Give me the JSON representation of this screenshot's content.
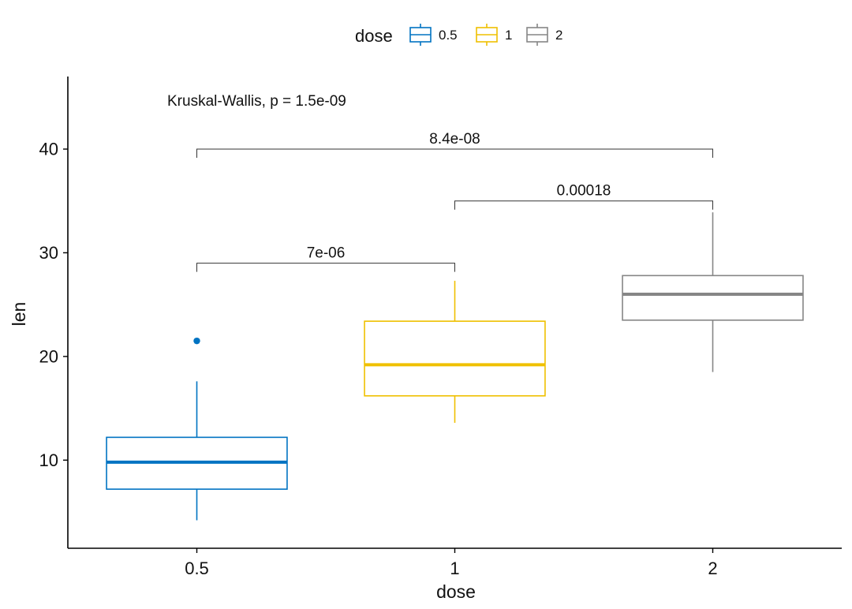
{
  "chart_data": {
    "type": "boxplot",
    "xlabel": "dose",
    "ylabel": "len",
    "ylim": [
      1.5,
      47
    ],
    "yticks": [
      10,
      20,
      30,
      40
    ],
    "categories": [
      "0.5",
      "1",
      "2"
    ],
    "legend": {
      "title": "dose",
      "position": "top",
      "entries": [
        "0.5",
        "1",
        "2"
      ]
    },
    "series": [
      {
        "name": "0.5",
        "color": "#0073C2",
        "whisker_low": 4.2,
        "q1": 7.2,
        "median": 9.8,
        "q3": 12.2,
        "whisker_high": 17.6,
        "outliers": [
          21.5
        ]
      },
      {
        "name": "1",
        "color": "#EFC000",
        "whisker_low": 13.6,
        "q1": 16.2,
        "median": 19.2,
        "q3": 23.4,
        "whisker_high": 27.3,
        "outliers": []
      },
      {
        "name": "2",
        "color": "#868686",
        "whisker_low": 18.5,
        "q1": 23.5,
        "median": 26.0,
        "q3": 27.8,
        "whisker_high": 33.9,
        "outliers": []
      }
    ],
    "annotations": {
      "global_test": "Kruskal-Wallis, p = 1.5e-09",
      "comparisons": [
        {
          "from": "0.5",
          "to": "1",
          "y": 29,
          "label": "7e-06"
        },
        {
          "from": "1",
          "to": "2",
          "y": 35,
          "label": "0.00018"
        },
        {
          "from": "0.5",
          "to": "2",
          "y": 40,
          "label": "8.4e-08"
        }
      ]
    }
  }
}
